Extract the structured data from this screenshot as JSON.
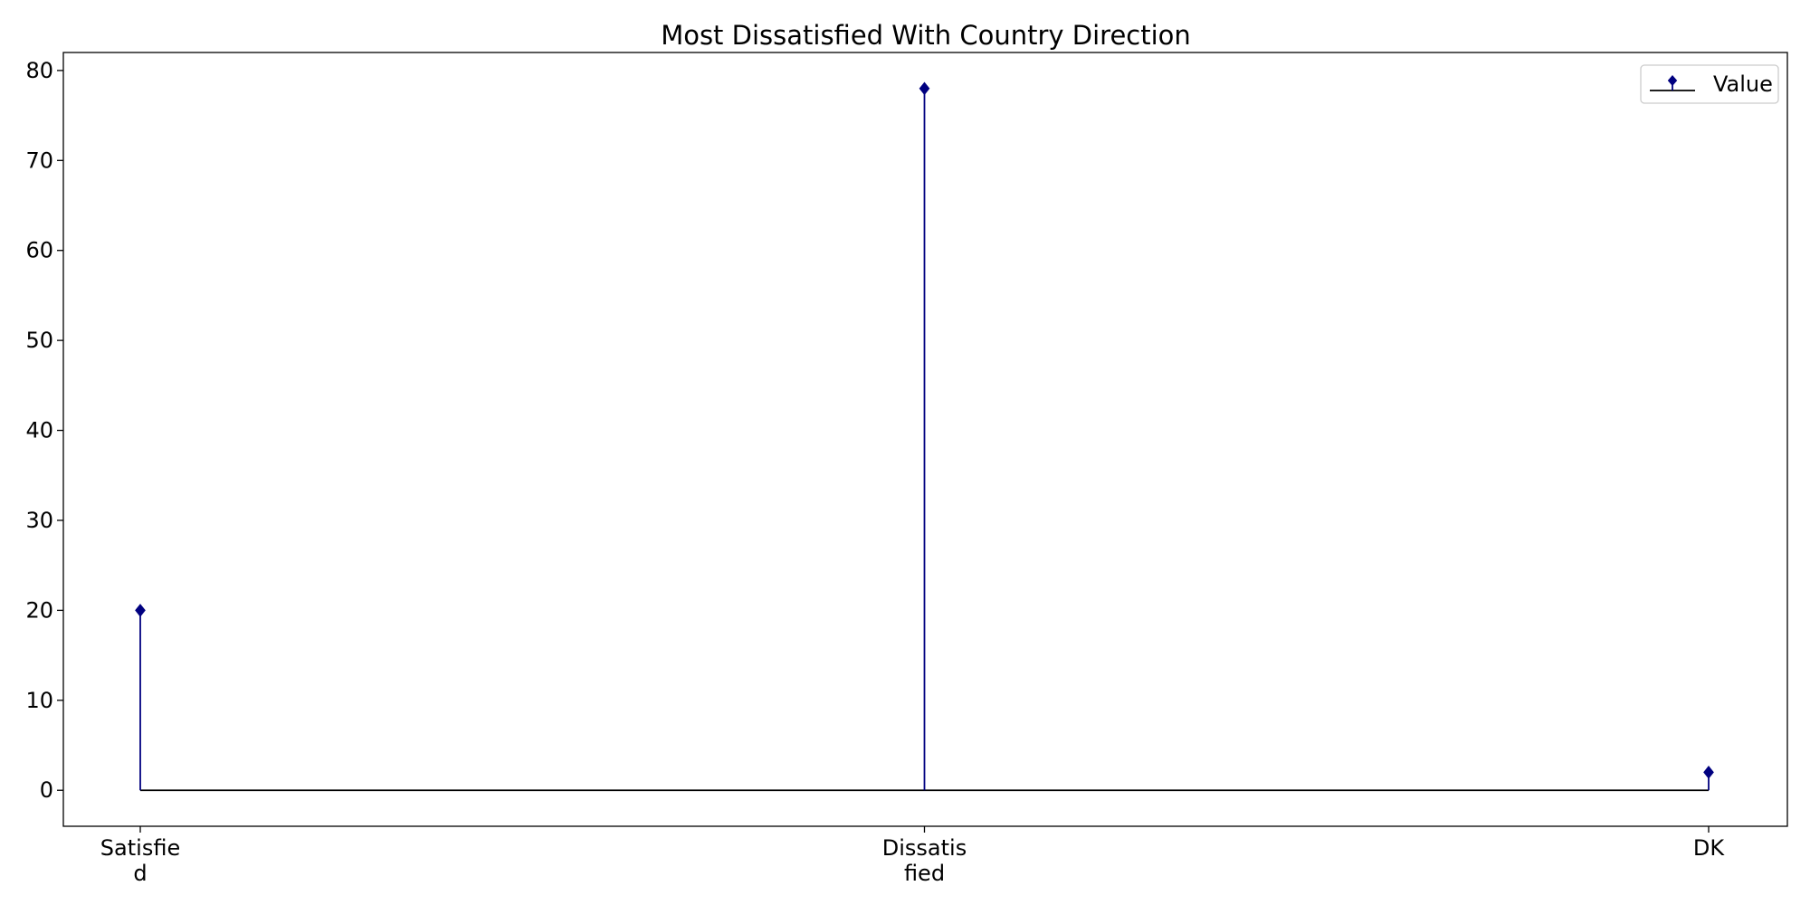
{
  "chart_data": {
    "type": "stem",
    "title": "Most Dissatisfied With Country Direction",
    "xlabel": "",
    "ylabel": "",
    "categories": [
      "Satisfie\nd",
      "Dissatis\nfied",
      "DK"
    ],
    "series": [
      {
        "name": "Value",
        "values": [
          20,
          78,
          2
        ],
        "color": "#000080",
        "marker": "diamond"
      }
    ],
    "baseline": 0,
    "baseline_color": "#000000",
    "ylim": [
      -4,
      82
    ],
    "yticks": [
      0,
      10,
      20,
      30,
      40,
      50,
      60,
      70,
      80
    ],
    "grid": false,
    "legend": {
      "position": "top-right",
      "entries": [
        "Value"
      ]
    }
  }
}
